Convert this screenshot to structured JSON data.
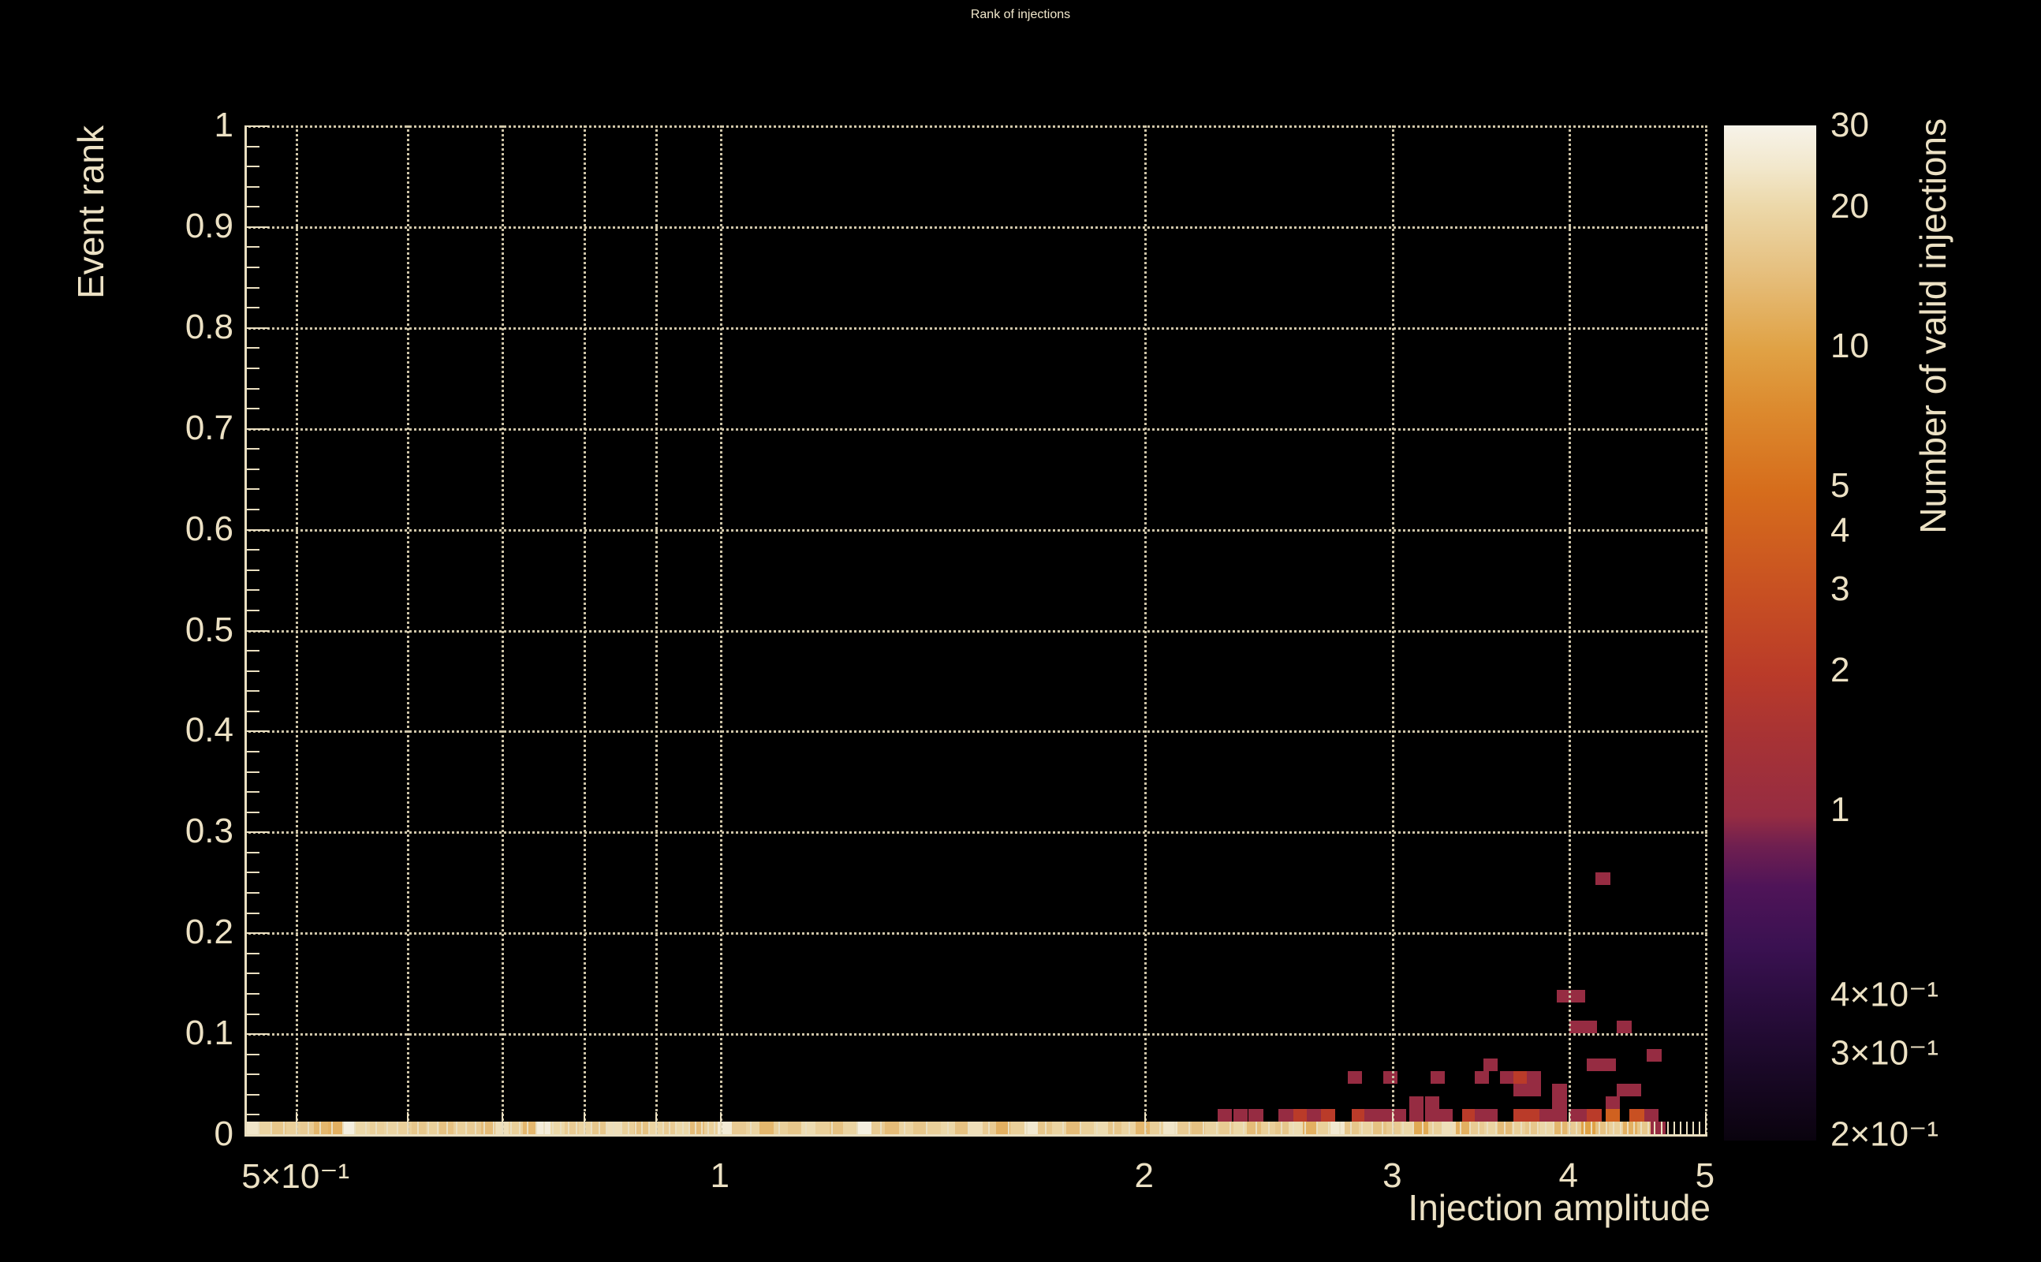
{
  "title": "Rank of injections",
  "colors": {
    "background": "#000000",
    "text": "#ece1c4",
    "title_text": "#f2e8cc",
    "axis": "#eadfc0",
    "grid": "#cfc5a8"
  },
  "chart_data": {
    "type": "heatmap",
    "title": "Rank of injections",
    "xlabel": "Injection amplitude",
    "ylabel": "Event rank",
    "zlabel": "Number of valid injections",
    "x_scale": "log",
    "x_range": [
      0.46,
      5.02
    ],
    "y_range": [
      0,
      1
    ],
    "z_scale": "log",
    "z_range": [
      0.2,
      30
    ],
    "grid": true,
    "legend_position": "right-colorbar",
    "x_major_ticks": [
      {
        "v": 0.5,
        "label": "5×10⁻¹"
      },
      {
        "v": 0.6
      },
      {
        "v": 0.7
      },
      {
        "v": 0.8
      },
      {
        "v": 0.9
      },
      {
        "v": 1,
        "label": "1"
      },
      {
        "v": 2,
        "label": "2"
      },
      {
        "v": 3,
        "label": "3"
      },
      {
        "v": 4,
        "label": "4"
      },
      {
        "v": 5,
        "label": "5"
      }
    ],
    "x_minor_tick_ranges": [
      [
        0.47,
        0.99,
        0.01
      ],
      [
        1.05,
        5.0,
        0.05
      ]
    ],
    "y_major_ticks": [
      {
        "v": 0,
        "label": "0"
      },
      {
        "v": 0.1,
        "label": "0.1"
      },
      {
        "v": 0.2,
        "label": "0.2"
      },
      {
        "v": 0.3,
        "label": "0.3"
      },
      {
        "v": 0.4,
        "label": "0.4"
      },
      {
        "v": 0.5,
        "label": "0.5"
      },
      {
        "v": 0.6,
        "label": "0.6"
      },
      {
        "v": 0.7,
        "label": "0.7"
      },
      {
        "v": 0.8,
        "label": "0.8"
      },
      {
        "v": 0.9,
        "label": "0.9"
      },
      {
        "v": 1,
        "label": "1"
      }
    ],
    "y_minor_step": 0.02,
    "z_ticks": [
      {
        "v": 30,
        "label": "30",
        "len": 30
      },
      {
        "v": 20,
        "label": "20",
        "len": 30
      },
      {
        "v": 10,
        "label": "10",
        "len": 60
      },
      {
        "v": 9,
        "len": 18
      },
      {
        "v": 8,
        "len": 18
      },
      {
        "v": 7,
        "len": 18
      },
      {
        "v": 6,
        "len": 18
      },
      {
        "v": 5,
        "label": "5",
        "len": 30
      },
      {
        "v": 4,
        "label": "4",
        "len": 30
      },
      {
        "v": 3,
        "label": "3",
        "len": 30
      },
      {
        "v": 2,
        "label": "2",
        "len": 30
      },
      {
        "v": 1,
        "label": "1",
        "len": 60
      },
      {
        "v": 0.9,
        "len": 18
      },
      {
        "v": 0.8,
        "len": 18
      },
      {
        "v": 0.7,
        "len": 18
      },
      {
        "v": 0.6,
        "len": 18
      },
      {
        "v": 0.5,
        "len": 18
      },
      {
        "v": 0.4,
        "label": "4×10⁻¹",
        "len": 30
      },
      {
        "v": 0.3,
        "label": "3×10⁻¹",
        "len": 30
      },
      {
        "v": 0.2,
        "label": "2×10⁻¹",
        "len": 30
      }
    ],
    "palette_stops": [
      [
        0.0,
        "#0a030e"
      ],
      [
        0.08,
        "#1c092a"
      ],
      [
        0.14,
        "#2b0d3f"
      ],
      [
        0.19,
        "#3a1151"
      ],
      [
        0.25,
        "#4f1458"
      ],
      [
        0.29,
        "#6f1f50"
      ],
      [
        0.32,
        "#962c42"
      ],
      [
        0.4,
        "#a83334"
      ],
      [
        0.46,
        "#ba3b29"
      ],
      [
        0.54,
        "#c85022"
      ],
      [
        0.64,
        "#d66d1c"
      ],
      [
        0.72,
        "#dc8a2e"
      ],
      [
        0.78,
        "#e0a245"
      ],
      [
        0.86,
        "#e6c181"
      ],
      [
        0.92,
        "#ecd8a9"
      ],
      [
        0.96,
        "#f2e8cd"
      ],
      [
        1.0,
        "#f7f3e9"
      ]
    ],
    "bin_decades_x": 0.00988,
    "bin_rank_y": 0.0125,
    "stripe": {
      "x_start": 0.46,
      "rank": 0,
      "values": [
        24,
        19,
        16,
        18,
        17,
        13,
        12,
        28,
        20,
        18,
        19,
        18,
        16,
        18,
        15,
        18,
        17,
        14,
        22,
        18,
        13,
        27,
        20,
        17,
        19,
        16,
        22,
        18,
        15,
        19,
        17,
        20,
        14,
        18,
        26,
        17,
        19,
        13,
        18,
        16,
        21,
        18,
        15,
        19,
        28,
        17,
        14,
        19,
        16,
        18,
        20,
        15,
        22,
        17,
        12,
        18,
        25,
        16,
        19,
        14,
        18,
        21,
        16,
        19,
        13,
        18,
        24,
        17,
        15,
        19,
        17,
        20,
        14,
        18,
        16,
        21,
        12,
        18,
        25,
        16,
        19,
        15,
        17,
        20,
        11,
        18,
        22,
        12,
        17,
        19,
        14,
        18,
        16,
        20,
        13,
        17,
        10,
        15,
        18,
        12,
        16,
        1
      ]
    },
    "cells": [
      [
        4.23,
        0.253,
        1
      ],
      [
        3.97,
        0.137,
        1
      ],
      [
        4.06,
        0.137,
        1
      ],
      [
        4.05,
        0.106,
        1
      ],
      [
        4.14,
        0.106,
        1
      ],
      [
        4.38,
        0.106,
        1
      ],
      [
        4.6,
        0.078,
        1
      ],
      [
        3.52,
        0.069,
        1
      ],
      [
        4.17,
        0.069,
        1
      ],
      [
        4.27,
        0.069,
        1
      ],
      [
        2.82,
        0.056,
        1
      ],
      [
        2.99,
        0.056,
        1
      ],
      [
        3.23,
        0.056,
        1
      ],
      [
        3.47,
        0.056,
        1
      ],
      [
        3.62,
        0.056,
        1
      ],
      [
        3.7,
        0.056,
        2
      ],
      [
        3.78,
        0.056,
        1
      ],
      [
        3.7,
        0.044,
        1
      ],
      [
        3.78,
        0.044,
        1
      ],
      [
        3.94,
        0.044,
        1
      ],
      [
        4.38,
        0.044,
        1
      ],
      [
        4.45,
        0.044,
        1
      ],
      [
        3.12,
        0.031,
        1
      ],
      [
        3.2,
        0.031,
        1
      ],
      [
        3.94,
        0.031,
        1
      ],
      [
        4.3,
        0.031,
        1
      ],
      [
        2.28,
        0.019,
        1
      ],
      [
        2.34,
        0.019,
        1
      ],
      [
        2.4,
        0.019,
        1
      ],
      [
        2.52,
        0.019,
        1
      ],
      [
        2.58,
        0.019,
        2
      ],
      [
        2.64,
        0.019,
        1
      ],
      [
        2.7,
        0.019,
        2
      ],
      [
        2.84,
        0.019,
        2
      ],
      [
        2.9,
        0.019,
        1
      ],
      [
        2.97,
        0.019,
        1
      ],
      [
        3.03,
        0.019,
        1
      ],
      [
        3.12,
        0.019,
        1
      ],
      [
        3.2,
        0.019,
        1
      ],
      [
        3.27,
        0.019,
        1
      ],
      [
        3.4,
        0.019,
        2
      ],
      [
        3.47,
        0.019,
        1
      ],
      [
        3.52,
        0.019,
        1
      ],
      [
        3.7,
        0.019,
        2
      ],
      [
        3.78,
        0.019,
        2
      ],
      [
        3.86,
        0.019,
        1
      ],
      [
        3.94,
        0.019,
        1
      ],
      [
        4.05,
        0.019,
        1
      ],
      [
        4.14,
        0.019,
        1
      ],
      [
        4.17,
        0.019,
        2
      ],
      [
        4.3,
        0.019,
        4
      ],
      [
        4.47,
        0.019,
        3
      ],
      [
        4.58,
        0.019,
        1
      ]
    ]
  }
}
